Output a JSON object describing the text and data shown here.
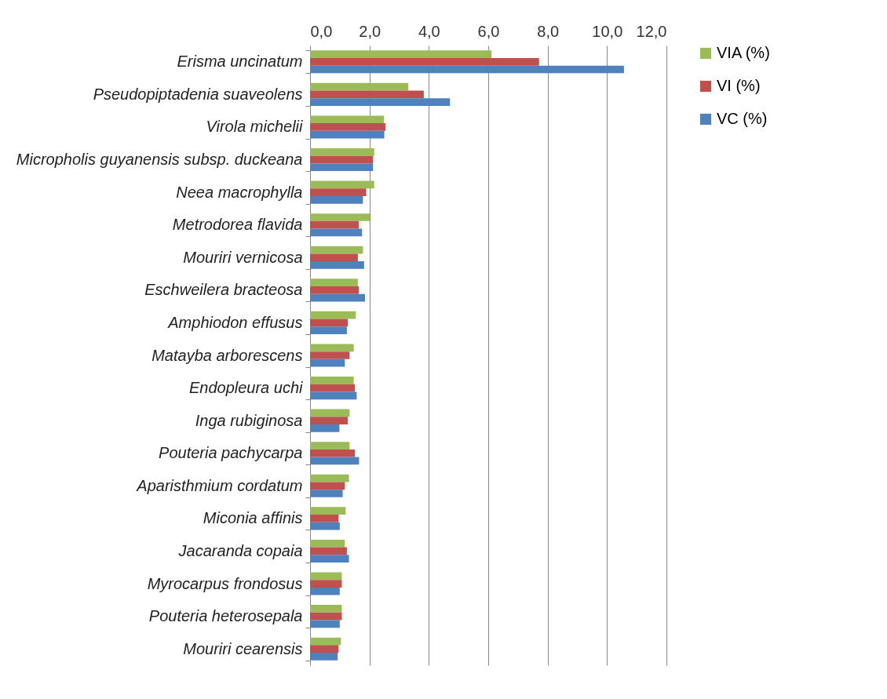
{
  "chart_data": {
    "type": "bar",
    "orientation": "horizontal",
    "categories": [
      "Erisma uncinatum",
      "Pseudopiptadenia suaveolens",
      "Virola michelii",
      "Micropholis guyanensis subsp. duckeana",
      "Neea macrophylla",
      "Metrodorea flavida",
      "Mouriri vernicosa",
      "Eschweilera bracteosa",
      "Amphiodon effusus",
      "Matayba arborescens",
      "Endopleura uchi",
      "Inga rubiginosa",
      "Pouteria pachycarpa",
      "Aparisthmium cordatum",
      "Miconia affinis",
      "Jacaranda copaia",
      "Myrocarpus frondosus",
      "Pouteria heterosepala",
      "Mouriri cearensis"
    ],
    "series": [
      {
        "name": "VIA (%)",
        "color": "#9bbb59",
        "values": [
          6.11,
          3.31,
          2.49,
          2.16,
          2.16,
          2.01,
          1.78,
          1.61,
          1.54,
          1.47,
          1.47,
          1.33,
          1.33,
          1.31,
          1.2,
          1.17,
          1.07,
          1.07,
          1.04
        ]
      },
      {
        "name": "VI (%)",
        "color": "#c0504d",
        "values": [
          7.71,
          3.83,
          2.54,
          2.12,
          1.89,
          1.64,
          1.61,
          1.64,
          1.27,
          1.33,
          1.51,
          1.27,
          1.51,
          1.17,
          0.96,
          1.24,
          1.07,
          1.07,
          0.96
        ]
      },
      {
        "name": "VC (%)",
        "color": "#4f81bd",
        "values": [
          10.57,
          4.71,
          2.5,
          2.12,
          1.78,
          1.75,
          1.82,
          1.85,
          1.24,
          1.17,
          1.57,
          0.99,
          1.65,
          1.1,
          1.0,
          1.31,
          1.0,
          1.0,
          0.93
        ]
      }
    ],
    "xlim": [
      0,
      12
    ],
    "xticks": [
      {
        "value": 0,
        "label": "0,0"
      },
      {
        "value": 2,
        "label": "2,0"
      },
      {
        "value": 4,
        "label": "4,0"
      },
      {
        "value": 6,
        "label": "6,0"
      },
      {
        "value": 8,
        "label": "8,0"
      },
      {
        "value": 10,
        "label": "10,0"
      },
      {
        "value": 12,
        "label": "12,0"
      }
    ],
    "grid": "x",
    "legend": "right"
  }
}
